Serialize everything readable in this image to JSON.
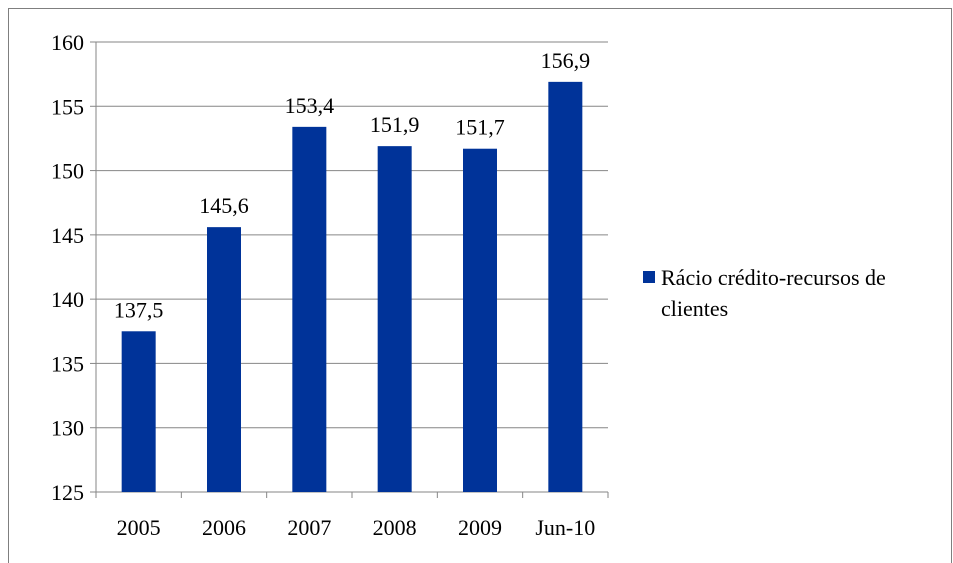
{
  "chart_data": {
    "type": "bar",
    "categories": [
      "2005",
      "2006",
      "2007",
      "2008",
      "2009",
      "Jun-10"
    ],
    "series": [
      {
        "name": "Rácio crédito-recursos de clientes",
        "values": [
          137.5,
          145.6,
          153.4,
          151.9,
          151.7,
          156.9
        ],
        "labels": [
          "137,5",
          "145,6",
          "153,4",
          "151,9",
          "151,7",
          "156,9"
        ],
        "color": "#003399"
      }
    ],
    "ylim": [
      125,
      160
    ],
    "yticks": [
      125,
      130,
      135,
      140,
      145,
      150,
      155,
      160
    ],
    "grid": true,
    "legend_position": "right",
    "legend_lines": [
      "Rácio crédito-recursos de",
      "clientes"
    ]
  }
}
